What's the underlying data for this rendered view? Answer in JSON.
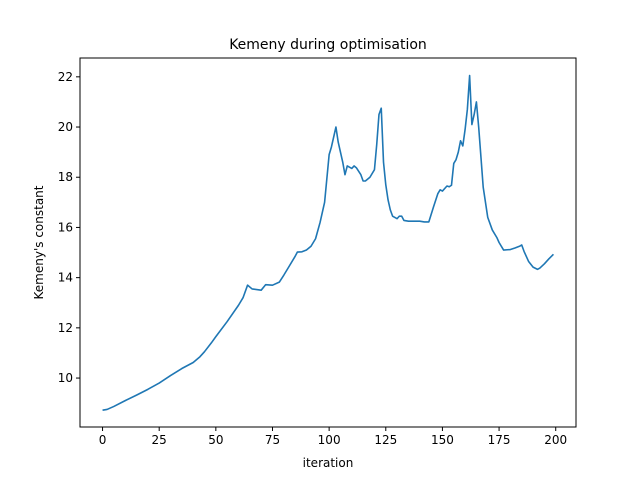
{
  "chart_data": {
    "type": "line",
    "title": "Kemeny during optimisation",
    "xlabel": "iteration",
    "ylabel": "Kemeny's constant",
    "xlim": [
      -9.95,
      208.95
    ],
    "ylim": [
      8.05,
      22.75
    ],
    "xticks": [
      0,
      25,
      50,
      75,
      100,
      125,
      150,
      175,
      200
    ],
    "yticks": [
      10,
      12,
      14,
      16,
      18,
      20,
      22
    ],
    "grid": false,
    "series": [
      {
        "color": "#1f77b4",
        "x": [
          0,
          2,
          5,
          10,
          15,
          20,
          25,
          30,
          35,
          40,
          43,
          45,
          48,
          50,
          55,
          60,
          62,
          64,
          66,
          70,
          72,
          75,
          78,
          80,
          82,
          85,
          86,
          88,
          90,
          92,
          94,
          96,
          98,
          100,
          101,
          103,
          104,
          106,
          107,
          108,
          110,
          111,
          112,
          114,
          115,
          116,
          118,
          120,
          121,
          122,
          123,
          124,
          125,
          126,
          127,
          128,
          130,
          131,
          132,
          133,
          135,
          140,
          142,
          144,
          146,
          148,
          149,
          150,
          152,
          153,
          154,
          155,
          156,
          157,
          158,
          159,
          160,
          161,
          162,
          163,
          164,
          165,
          166,
          167,
          168,
          170,
          172,
          174,
          175,
          177,
          180,
          182,
          184,
          185,
          186,
          188,
          190,
          192,
          193,
          195,
          197,
          199
        ],
        "y": [
          8.72,
          8.75,
          8.87,
          9.1,
          9.32,
          9.55,
          9.8,
          10.1,
          10.38,
          10.62,
          10.85,
          11.05,
          11.4,
          11.65,
          12.25,
          12.9,
          13.2,
          13.7,
          13.55,
          13.5,
          13.72,
          13.7,
          13.82,
          14.1,
          14.4,
          14.85,
          15.02,
          15.03,
          15.1,
          15.25,
          15.55,
          16.2,
          17.0,
          18.9,
          19.2,
          20.0,
          19.4,
          18.6,
          18.1,
          18.45,
          18.35,
          18.45,
          18.38,
          18.1,
          17.85,
          17.85,
          18.0,
          18.3,
          19.3,
          20.5,
          20.75,
          18.6,
          17.7,
          17.1,
          16.7,
          16.45,
          16.35,
          16.45,
          16.45,
          16.28,
          16.25,
          16.25,
          16.22,
          16.22,
          16.8,
          17.35,
          17.5,
          17.45,
          17.65,
          17.62,
          17.68,
          18.55,
          18.7,
          19.0,
          19.45,
          19.25,
          19.9,
          20.7,
          22.05,
          20.1,
          20.5,
          21.0,
          20.0,
          18.8,
          17.6,
          16.4,
          15.9,
          15.6,
          15.4,
          15.1,
          15.12,
          15.18,
          15.25,
          15.3,
          15.05,
          14.65,
          14.42,
          14.33,
          14.38,
          14.55,
          14.75,
          14.93
        ]
      }
    ]
  }
}
